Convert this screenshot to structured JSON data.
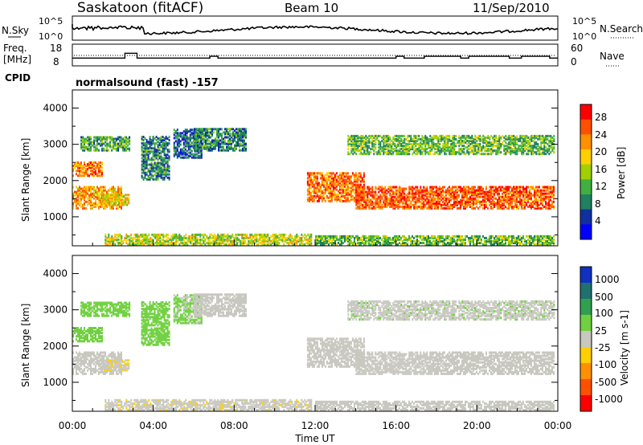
{
  "header": {
    "station": "Saskatoon (fitACF)",
    "beam": "Beam 10",
    "date": "11/Sep/2010"
  },
  "noise_panel": {
    "left_label": "N.Sky",
    "right_label": "N.Search",
    "y_ticks_left": [
      "10^5",
      "10^0"
    ],
    "y_ticks_right": [
      "10^5",
      "10^0"
    ]
  },
  "freq_panel": {
    "left_label_line1": "Freq.",
    "left_label_line2": "[MHz]",
    "right_label": "Nave",
    "y_ticks_left": [
      "18",
      "8"
    ],
    "y_ticks_right": [
      "60",
      "0"
    ],
    "freq_mhz_series": [
      {
        "t": 0.0,
        "f": 11.6
      },
      {
        "t": 2.6,
        "f": 11.6
      },
      {
        "t": 2.6,
        "f": 13.8
      },
      {
        "t": 3.2,
        "f": 13.8
      },
      {
        "t": 3.2,
        "f": 11.6
      },
      {
        "t": 6.8,
        "f": 11.6
      },
      {
        "t": 6.8,
        "f": 12.4
      },
      {
        "t": 7.2,
        "f": 12.4
      },
      {
        "t": 7.2,
        "f": 11.6
      },
      {
        "t": 16.0,
        "f": 11.6
      },
      {
        "t": 16.0,
        "f": 12.4
      },
      {
        "t": 16.4,
        "f": 12.4
      },
      {
        "t": 16.4,
        "f": 11.6
      },
      {
        "t": 17.4,
        "f": 11.6
      },
      {
        "t": 17.4,
        "f": 12.4
      },
      {
        "t": 19.2,
        "f": 12.4
      },
      {
        "t": 19.2,
        "f": 11.6
      },
      {
        "t": 19.6,
        "f": 11.6
      },
      {
        "t": 19.6,
        "f": 12.4
      },
      {
        "t": 21.6,
        "f": 12.4
      },
      {
        "t": 21.6,
        "f": 11.6
      },
      {
        "t": 22.2,
        "f": 11.6
      },
      {
        "t": 22.2,
        "f": 12.4
      },
      {
        "t": 23.6,
        "f": 12.4
      },
      {
        "t": 23.6,
        "f": 11.6
      },
      {
        "t": 24.0,
        "f": 11.6
      }
    ]
  },
  "cpid": {
    "label": "CPID",
    "value": "normalsound (fast) -157"
  },
  "time_axis": {
    "label": "Time UT",
    "ticks": [
      "00:00",
      "04:00",
      "08:00",
      "12:00",
      "16:00",
      "20:00",
      "00:00"
    ]
  },
  "range_axis": {
    "label": "Slant Range [km]",
    "ticks": [
      "1000",
      "2000",
      "3000",
      "4000"
    ]
  },
  "power_colorbar": {
    "title": "Power [dB]",
    "ticks": [
      "28",
      "24",
      "20",
      "16",
      "12",
      "8",
      "4"
    ],
    "colors": [
      "#ff0000",
      "#ff5000",
      "#ff9000",
      "#ffd000",
      "#a0d000",
      "#40b040",
      "#208060",
      "#1030a0",
      "#0000ff"
    ]
  },
  "velocity_colorbar": {
    "title": "Velocity [m s-1]",
    "ticks": [
      "1000",
      "500",
      "100",
      "25",
      "-25",
      "-100",
      "-500",
      "-1000"
    ],
    "colors": [
      "#1030c0",
      "#207070",
      "#30a050",
      "#70d040",
      "#c8c8c0",
      "#ffd000",
      "#ff9000",
      "#ff5000",
      "#ff0000"
    ]
  },
  "chart_data": {
    "type": "heatmap",
    "x_unit": "hours UT",
    "xlim": [
      0,
      24
    ],
    "ylim": [
      200,
      4500
    ],
    "power_scale_db": [
      0,
      30
    ],
    "velocity_scale_ms": [
      -1000,
      1000
    ],
    "echo_regions": [
      {
        "t0": 0.0,
        "t1": 1.5,
        "r0": 2100,
        "r1": 2500,
        "power": 24,
        "velocity": 300
      },
      {
        "t0": 0.0,
        "t1": 2.4,
        "r0": 1200,
        "r1": 1800,
        "power": 22,
        "velocity": 0
      },
      {
        "t0": 0.4,
        "t1": 2.8,
        "r0": 2800,
        "r1": 3200,
        "power": 10,
        "velocity": 200
      },
      {
        "t0": 1.4,
        "t1": 2.8,
        "r0": 1300,
        "r1": 1600,
        "power": 18,
        "velocity": -100
      },
      {
        "t0": 3.4,
        "t1": 4.8,
        "r0": 2000,
        "r1": 3200,
        "power": 8,
        "velocity": 200
      },
      {
        "t0": 5.0,
        "t1": 6.4,
        "r0": 2600,
        "r1": 3400,
        "power": 6,
        "velocity": 150
      },
      {
        "t0": 6.0,
        "t1": 8.6,
        "r0": 2800,
        "r1": 3400,
        "power": 8,
        "velocity": 0
      },
      {
        "t0": 1.6,
        "t1": 11.8,
        "r0": 200,
        "r1": 500,
        "power": 16,
        "velocity": -80
      },
      {
        "t0": 11.6,
        "t1": 14.4,
        "r0": 1400,
        "r1": 2200,
        "power": 24,
        "velocity": 0
      },
      {
        "t0": 14.0,
        "t1": 17.8,
        "r0": 1200,
        "r1": 1800,
        "power": 26,
        "velocity": 0
      },
      {
        "t0": 17.8,
        "t1": 23.8,
        "r0": 1200,
        "r1": 1800,
        "power": 26,
        "velocity": 0
      },
      {
        "t0": 13.6,
        "t1": 23.8,
        "r0": 2700,
        "r1": 3200,
        "power": 12,
        "velocity": 80
      },
      {
        "t0": 12.0,
        "t1": 23.8,
        "r0": 200,
        "r1": 450,
        "power": 12,
        "velocity": 0
      }
    ]
  }
}
